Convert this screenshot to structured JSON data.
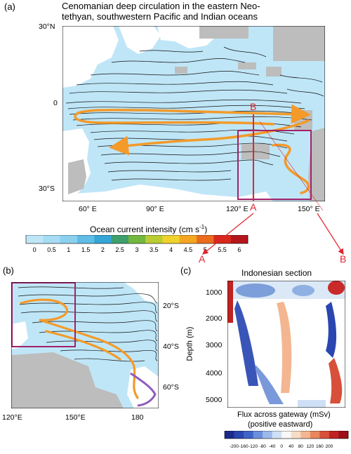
{
  "panel_a": {
    "label": "(a)",
    "title_line1": "Cenomanian deep circulation in the eastern Neo-",
    "title_line2": "tethyan, southwestern Pacific and Indian oceans",
    "lat_ticks": [
      "30°N",
      "0",
      "30°S"
    ],
    "lon_ticks": [
      "60° E",
      "90° E",
      "120° E",
      "150° E"
    ],
    "section_start": "A",
    "section_end": "B"
  },
  "colorbar_intensity": {
    "title": "Ocean current intensity (cm s",
    "title_sup": "-1",
    "title_close": ")",
    "ticks": [
      "0",
      "0.5",
      "1",
      "1.5",
      "2",
      "2.5",
      "3",
      "3.5",
      "4",
      "4.5",
      "5",
      "5.5",
      "6"
    ],
    "colors": [
      "#bfe6f7",
      "#a6dcf4",
      "#8cd0ef",
      "#5fbde6",
      "#35a6d6",
      "#3f9f6e",
      "#72b83f",
      "#b9cc33",
      "#efd22c",
      "#f4a623",
      "#ec6c1e",
      "#d9281d",
      "#b3161c"
    ]
  },
  "panel_b": {
    "label": "(b)",
    "lat_ticks": [
      "20°S",
      "40°S",
      "60°S"
    ],
    "lon_ticks": [
      "120°E",
      "150°E",
      "180"
    ]
  },
  "panel_c": {
    "label": "(c)",
    "title": "Indonesian section",
    "left_end": "A",
    "right_end": "B",
    "ylabel": "Depth (m)",
    "depth_ticks": [
      "1000",
      "2000",
      "3000",
      "4000",
      "5000"
    ],
    "xlabel_line1": "Flux across gateway (mSv)",
    "xlabel_line2": "(positive eastward)"
  },
  "colorbar_flux": {
    "ticks": [
      "-200",
      "-160",
      "-120",
      "-80",
      "-40",
      "0",
      "40",
      "80",
      "120",
      "160",
      "200"
    ],
    "colors": [
      "#1c2a8c",
      "#2a46b0",
      "#3f63c9",
      "#6b8fdc",
      "#9db9ea",
      "#cfe0f6",
      "#f7f7f7",
      "#f7dcc7",
      "#f3b691",
      "#e8865e",
      "#d8503a",
      "#c02222",
      "#9c0f18"
    ]
  }
}
